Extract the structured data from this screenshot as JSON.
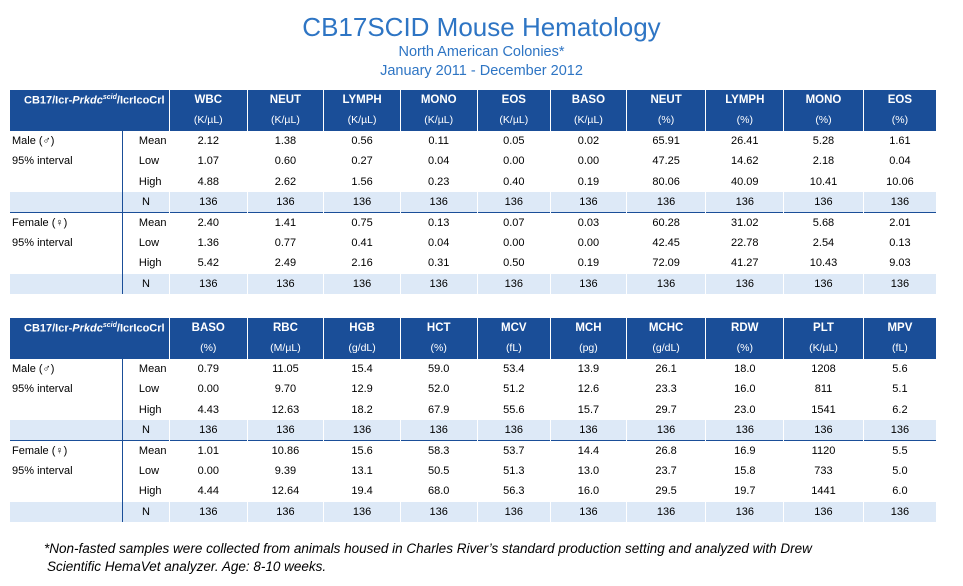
{
  "header": {
    "title": "CB17SCID Mouse Hematology",
    "subtitle_line1": "North American Colonies*",
    "subtitle_line2": "January 2011 - December 2012"
  },
  "tables": [
    {
      "strain_prefix": "CB17/Icr-",
      "strain_gene": "Prkdc",
      "strain_sup": "scid",
      "strain_suffix": "/IcrIcoCrl",
      "columns": [
        "WBC",
        "NEUT",
        "LYMPH",
        "MONO",
        "EOS",
        "BASO",
        "NEUT",
        "LYMPH",
        "MONO",
        "EOS"
      ],
      "units": [
        "(K/µL)",
        "(K/µL)",
        "(K/µL)",
        "(K/µL)",
        "(K/µL)",
        "(K/µL)",
        "(%)",
        "(%)",
        "(%)",
        "(%)"
      ],
      "groups": [
        {
          "sex_label": "Male (♂)",
          "interval_label": "95% interval",
          "rows": [
            {
              "stat": "Mean",
              "values": [
                "2.12",
                "1.38",
                "0.56",
                "0.11",
                "0.05",
                "0.02",
                "65.91",
                "26.41",
                "5.28",
                "1.61"
              ]
            },
            {
              "stat": "Low",
              "values": [
                "1.07",
                "0.60",
                "0.27",
                "0.04",
                "0.00",
                "0.00",
                "47.25",
                "14.62",
                "2.18",
                "0.04"
              ]
            },
            {
              "stat": "High",
              "values": [
                "4.88",
                "2.62",
                "1.56",
                "0.23",
                "0.40",
                "0.19",
                "80.06",
                "40.09",
                "10.41",
                "10.06"
              ]
            },
            {
              "stat": "N",
              "values": [
                "136",
                "136",
                "136",
                "136",
                "136",
                "136",
                "136",
                "136",
                "136",
                "136"
              ]
            }
          ]
        },
        {
          "sex_label": "Female (♀)",
          "interval_label": "95% interval",
          "rows": [
            {
              "stat": "Mean",
              "values": [
                "2.40",
                "1.41",
                "0.75",
                "0.13",
                "0.07",
                "0.03",
                "60.28",
                "31.02",
                "5.68",
                "2.01"
              ]
            },
            {
              "stat": "Low",
              "values": [
                "1.36",
                "0.77",
                "0.41",
                "0.04",
                "0.00",
                "0.00",
                "42.45",
                "22.78",
                "2.54",
                "0.13"
              ]
            },
            {
              "stat": "High",
              "values": [
                "5.42",
                "2.49",
                "2.16",
                "0.31",
                "0.50",
                "0.19",
                "72.09",
                "41.27",
                "10.43",
                "9.03"
              ]
            },
            {
              "stat": "N",
              "values": [
                "136",
                "136",
                "136",
                "136",
                "136",
                "136",
                "136",
                "136",
                "136",
                "136"
              ]
            }
          ]
        }
      ]
    },
    {
      "strain_prefix": "CB17/Icr-",
      "strain_gene": "Prkdc",
      "strain_sup": "scid",
      "strain_suffix": "/IcrIcoCrl",
      "columns": [
        "BASO",
        "RBC",
        "HGB",
        "HCT",
        "MCV",
        "MCH",
        "MCHC",
        "RDW",
        "PLT",
        "MPV"
      ],
      "units": [
        "(%)",
        "(M/µL)",
        "(g/dL)",
        "(%)",
        "(fL)",
        "(pg)",
        "(g/dL)",
        "(%)",
        "(K/µL)",
        "(fL)"
      ],
      "groups": [
        {
          "sex_label": "Male (♂)",
          "interval_label": "95% interval",
          "rows": [
            {
              "stat": "Mean",
              "values": [
                "0.79",
                "11.05",
                "15.4",
                "59.0",
                "53.4",
                "13.9",
                "26.1",
                "18.0",
                "1208",
                "5.6"
              ]
            },
            {
              "stat": "Low",
              "values": [
                "0.00",
                "9.70",
                "12.9",
                "52.0",
                "51.2",
                "12.6",
                "23.3",
                "16.0",
                "811",
                "5.1"
              ]
            },
            {
              "stat": "High",
              "values": [
                "4.43",
                "12.63",
                "18.2",
                "67.9",
                "55.6",
                "15.7",
                "29.7",
                "23.0",
                "1541",
                "6.2"
              ]
            },
            {
              "stat": "N",
              "values": [
                "136",
                "136",
                "136",
                "136",
                "136",
                "136",
                "136",
                "136",
                "136",
                "136"
              ]
            }
          ]
        },
        {
          "sex_label": "Female (♀)",
          "interval_label": "95% interval",
          "rows": [
            {
              "stat": "Mean",
              "values": [
                "1.01",
                "10.86",
                "15.6",
                "58.3",
                "53.7",
                "14.4",
                "26.8",
                "16.9",
                "1120",
                "5.5"
              ]
            },
            {
              "stat": "Low",
              "values": [
                "0.00",
                "9.39",
                "13.1",
                "50.5",
                "51.3",
                "13.0",
                "23.7",
                "15.8",
                "733",
                "5.0"
              ]
            },
            {
              "stat": "High",
              "values": [
                "4.44",
                "12.64",
                "19.4",
                "68.0",
                "56.3",
                "16.0",
                "29.5",
                "19.7",
                "1441",
                "6.0"
              ]
            },
            {
              "stat": "N",
              "values": [
                "136",
                "136",
                "136",
                "136",
                "136",
                "136",
                "136",
                "136",
                "136",
                "136"
              ]
            }
          ]
        }
      ]
    }
  ],
  "footnote": {
    "line1": "*Non-fasted samples were collected from animals housed in Charles River’s standard production setting and analyzed with Drew",
    "line2": "Scientific HemaVet analyzer. Age: 8-10 weeks."
  },
  "colors": {
    "title": "#2e75c4",
    "header_bg": "#1a4e98",
    "n_row_bg": "#dde9f7"
  }
}
